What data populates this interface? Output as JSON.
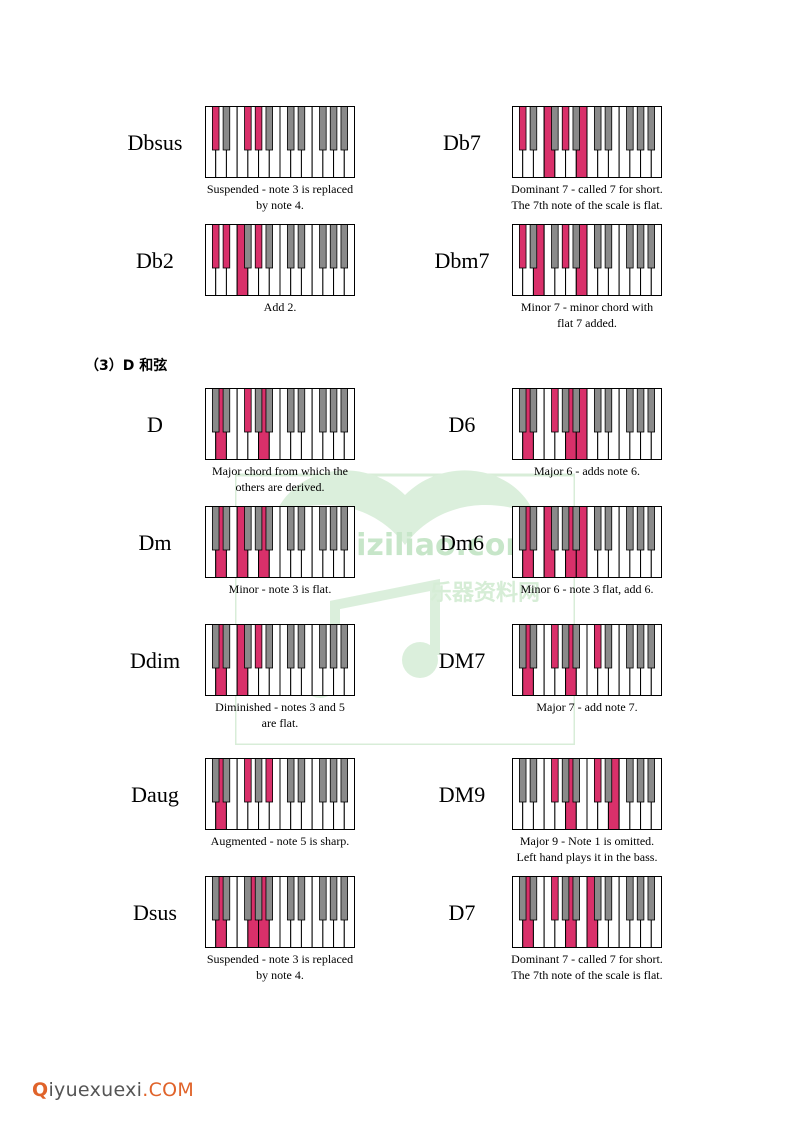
{
  "section_heading": "（3）D 和弦",
  "accent_color": "#d9306a",
  "footer": {
    "q": "Q",
    "rest": "iyuexuexi",
    "com": ".COM"
  },
  "watermark": {
    "lines": [
      "yueqiziliao.com",
      "乐器资料网"
    ]
  },
  "chords": [
    {
      "name": "Dbsus",
      "caption": "Suspended - note 3 is replaced\nby note 4.",
      "pressed": [
        1,
        6,
        8
      ]
    },
    {
      "name": "Db7",
      "caption": "Dominant 7 - called 7 for short.\nThe 7th note of the scale is flat.",
      "pressed": [
        1,
        5,
        8,
        11
      ]
    },
    {
      "name": "Db2",
      "caption": "Add 2.",
      "pressed": [
        1,
        3,
        5,
        8
      ]
    },
    {
      "name": "Dbm7",
      "caption": "Minor 7 - minor chord with\nflat 7 added.",
      "pressed": [
        1,
        4,
        8,
        11
      ]
    },
    {
      "name": "D",
      "caption": "Major chord from which the\nothers are derived.",
      "pressed": [
        2,
        6,
        9
      ]
    },
    {
      "name": "D6",
      "caption": "Major 6 - adds note 6.",
      "pressed": [
        2,
        6,
        9,
        11
      ]
    },
    {
      "name": "Dm",
      "caption": "Minor - note 3 is flat.",
      "pressed": [
        2,
        5,
        9
      ]
    },
    {
      "name": "Dm6",
      "caption": "Minor 6 - note 3 flat, add 6.",
      "pressed": [
        2,
        5,
        9,
        11
      ]
    },
    {
      "name": "Ddim",
      "caption": "Diminished - notes 3 and 5\nare flat.",
      "pressed": [
        2,
        5,
        8
      ]
    },
    {
      "name": "DM7",
      "caption": "Major 7 - add note 7.",
      "pressed": [
        2,
        6,
        9,
        13
      ]
    },
    {
      "name": "Daug",
      "caption": "Augmented - note 5 is sharp.",
      "pressed": [
        2,
        6,
        10
      ]
    },
    {
      "name": "DM9",
      "caption": "Major 9 - Note 1 is omitted.\nLeft hand plays it in the bass.",
      "pressed": [
        6,
        9,
        13,
        16
      ]
    },
    {
      "name": "Dsus",
      "caption": "Suspended - note 3 is replaced\nby note 4.",
      "pressed": [
        2,
        7,
        9
      ]
    },
    {
      "name": "D7",
      "caption": "Dominant 7 - called 7 for short.\nThe 7th note of the scale is flat.",
      "pressed": [
        2,
        6,
        9,
        12
      ]
    }
  ]
}
